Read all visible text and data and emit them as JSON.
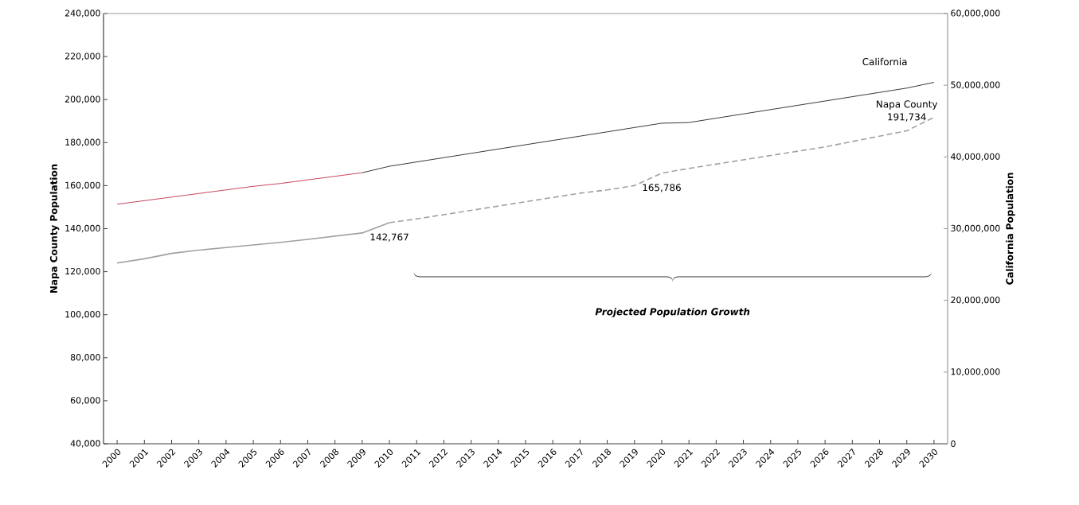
{
  "chart_data": {
    "type": "line",
    "ylabel": "Napa County Population",
    "y2label": "California Population",
    "categories": [
      "2000",
      "2001",
      "2002",
      "2003",
      "2004",
      "2005",
      "2006",
      "2007",
      "2008",
      "2009",
      "2010",
      "2011",
      "2012",
      "2013",
      "2014",
      "2015",
      "2016",
      "2017",
      "2018",
      "2019",
      "2020",
      "2021",
      "2022",
      "2023",
      "2024",
      "2025",
      "2026",
      "2027",
      "2028",
      "2029",
      "2030"
    ],
    "series": [
      {
        "color": "#a0a0a0",
        "line_style": "solid",
        "values": [
          124000,
          126000,
          128500,
          130000,
          131200,
          132400,
          133600,
          135000,
          136500,
          138000,
          142767,
          null,
          null,
          null,
          null,
          null,
          null,
          null,
          null,
          null,
          null,
          null,
          null,
          null,
          null,
          null,
          null,
          null,
          null,
          null,
          null
        ]
      },
      {
        "name": "Napa County",
        "color": "#a0a0a0",
        "line_style": "dashed",
        "values": [
          null,
          null,
          null,
          null,
          null,
          null,
          null,
          null,
          null,
          null,
          142767,
          144500,
          146500,
          148500,
          150500,
          152500,
          154500,
          156500,
          158000,
          160000,
          165786,
          168000,
          170000,
          172000,
          174000,
          176000,
          178000,
          180500,
          183000,
          185500,
          191734
        ],
        "value_labels": [
          null,
          null,
          null,
          null,
          null,
          null,
          null,
          null,
          null,
          null,
          "142,767",
          null,
          null,
          null,
          null,
          null,
          null,
          null,
          null,
          null,
          "165,786",
          null,
          null,
          null,
          null,
          null,
          null,
          null,
          null,
          null,
          "191,734"
        ]
      },
      {
        "color": "#c0304a",
        "axis": "y2",
        "line_style": "solid",
        "values": [
          33400000,
          33900000,
          34400000,
          34900000,
          35400000,
          35900000,
          36300000,
          36800000,
          37300000,
          37800000,
          null,
          null,
          null,
          null,
          null,
          null,
          null,
          null,
          null,
          null,
          null,
          null,
          null,
          null,
          null,
          null,
          null,
          null,
          null,
          null,
          null
        ]
      },
      {
        "name": "California",
        "color": "#222222",
        "axis": "y2",
        "line_style": "solid",
        "values": [
          null,
          null,
          null,
          null,
          null,
          null,
          null,
          null,
          null,
          37800000,
          38700000,
          39300000,
          39900000,
          40500000,
          41100000,
          41700000,
          42300000,
          42900000,
          43500000,
          44100000,
          44700000,
          44800000,
          45400000,
          46000000,
          46600000,
          47200000,
          47800000,
          48400000,
          49000000,
          49600000,
          50400000
        ]
      }
    ],
    "ylim": [
      40000,
      240000
    ],
    "yticks": [
      {
        "value": 40000,
        "label": "40,000"
      },
      {
        "value": 60000,
        "label": "60,000"
      },
      {
        "value": 80000,
        "label": "80,000"
      },
      {
        "value": 100000,
        "label": "100,000"
      },
      {
        "value": 120000,
        "label": "120,000"
      },
      {
        "value": 140000,
        "label": "140,000"
      },
      {
        "value": 160000,
        "label": "160,000"
      },
      {
        "value": 180000,
        "label": "180,000"
      },
      {
        "value": 200000,
        "label": "200,000"
      },
      {
        "value": 220000,
        "label": "220,000"
      },
      {
        "value": 240000,
        "label": "240,000"
      }
    ],
    "y2lim": [
      0,
      60000000
    ],
    "y2ticks": [
      0,
      {
        "value": 10000000,
        "label": "10,000,000"
      },
      {
        "value": 20000000,
        "label": "20,000,000"
      },
      {
        "value": 30000000,
        "label": "30,000,000"
      },
      {
        "value": 40000000,
        "label": "40,000,000"
      },
      {
        "value": 50000000,
        "label": "50,000,000"
      },
      {
        "value": 60000000,
        "label": "60,000,000"
      }
    ],
    "annotations": [
      "Projected Population Growth"
    ],
    "grid": false
  }
}
